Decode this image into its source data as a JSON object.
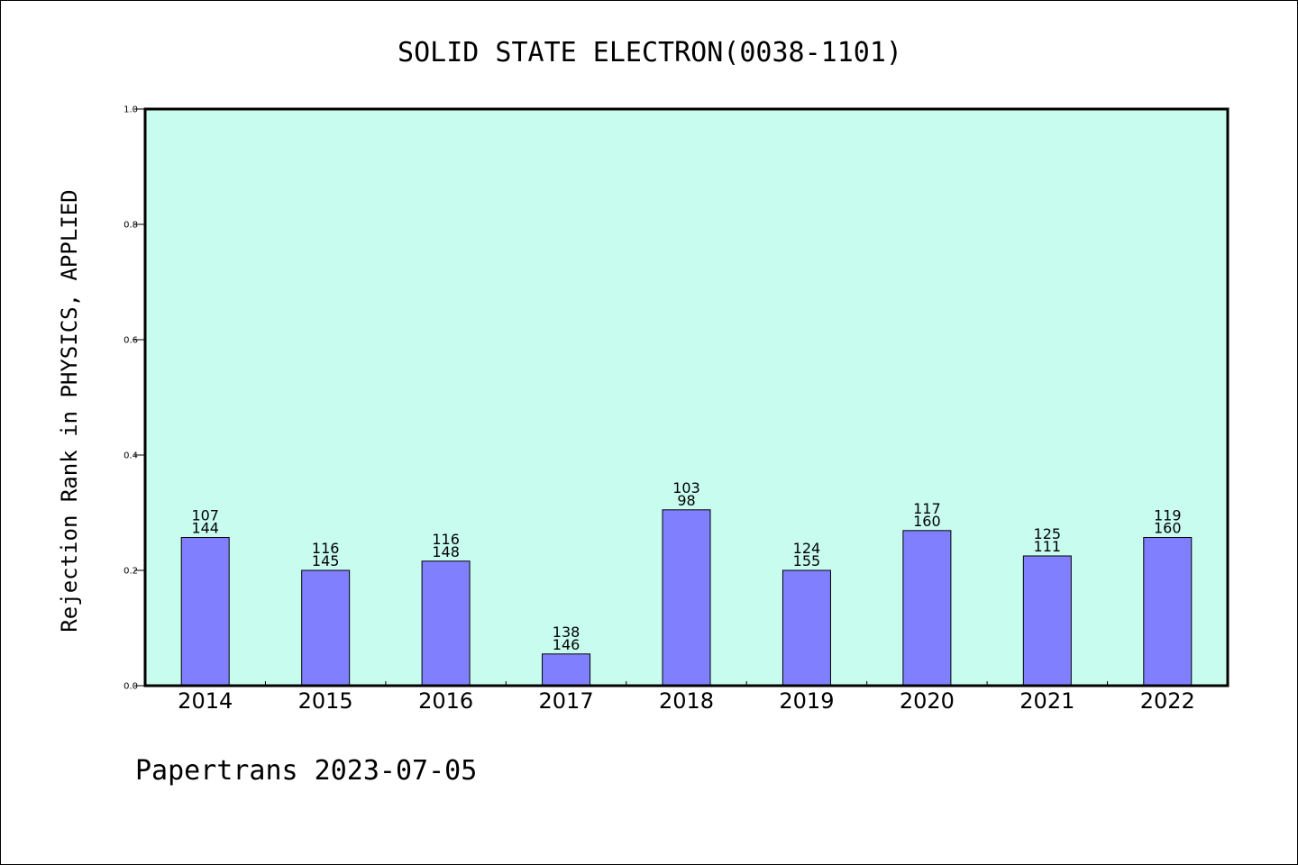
{
  "chart_data": {
    "type": "bar",
    "title": "SOLID STATE ELECTRON(0038-1101)",
    "xlabel": "",
    "ylabel": "Rejection Rank in PHYSICS, APPLIED",
    "ylim": [
      0,
      1.0
    ],
    "yticks": [
      "0.0",
      "0.2",
      "0.4",
      "0.6",
      "0.8",
      "1.0"
    ],
    "categories": [
      "2014",
      "2015",
      "2016",
      "2017",
      "2018",
      "2019",
      "2020",
      "2021",
      "2022"
    ],
    "values": [
      0.257,
      0.2,
      0.216,
      0.055,
      0.305,
      0.2,
      0.269,
      0.225,
      0.257
    ],
    "label_top": [
      "107",
      "116",
      "116",
      "138",
      "103",
      "124",
      "117",
      "125",
      "119"
    ],
    "label_bottom": [
      "144",
      "145",
      "148",
      "146",
      "98",
      "155",
      "160",
      "111",
      "160"
    ],
    "grid": false,
    "legend": "none",
    "colors": {
      "plot_bg": "#c8fcee",
      "bar": "#8080ff",
      "bar_edge": "#000000"
    }
  },
  "footer": {
    "text": "Papertrans 2023-07-05"
  }
}
